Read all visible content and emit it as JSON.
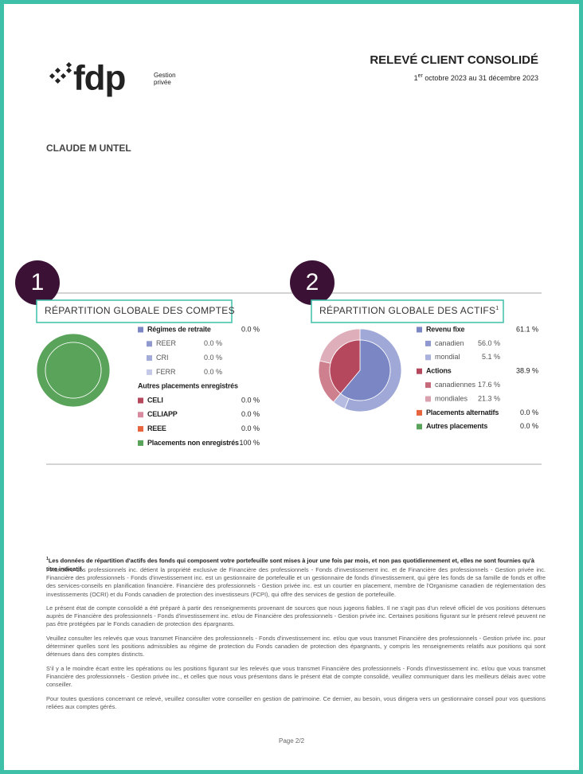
{
  "header": {
    "brand": "fdp",
    "brand_sub_1": "Gestion",
    "brand_sub_2": "privée",
    "title": "RELEVÉ CLIENT CONSOLIDÉ",
    "date_day": "1",
    "date_sup": "er",
    "date_rest": " octobre 2023 au 31 décembre 2023"
  },
  "client": "CLAUDE M UNTEL",
  "panels": [
    {
      "callout": "1",
      "title": "RÉPARTITION GLOBALE DES COMPTES",
      "items": [
        {
          "label": "Régimes de retraite",
          "value": 0,
          "value_label": "0.0 %",
          "color": "#7b86c4",
          "level": 0,
          "ring": "inner"
        },
        {
          "label": "REER",
          "value": 0,
          "value_label": "0.0 %",
          "color": "#8f99cf",
          "level": 1,
          "ring": "outer"
        },
        {
          "label": "CRI",
          "value": 0,
          "value_label": "0.0 %",
          "color": "#a3acd9",
          "level": 1,
          "ring": "outer"
        },
        {
          "label": "FERR",
          "value": 0,
          "value_label": "0.0 %",
          "color": "#c5c9e8",
          "level": 1,
          "ring": "outer"
        },
        {
          "label": "Autres placements enregistrés",
          "level": 0
        },
        {
          "label": "CELI",
          "value": 0,
          "value_label": "0.0 %",
          "color": "#b5485d",
          "level": 0,
          "ring": "both"
        },
        {
          "label": "CELIAPP",
          "value": 0,
          "value_label": "0.0 %",
          "color": "#d88aa0",
          "level": 0,
          "ring": "both"
        },
        {
          "label": "REEE",
          "value": 0,
          "value_label": "0.0 %",
          "color": "#e8643c",
          "level": 0,
          "ring": "both"
        },
        {
          "label": "Placements non enregistrés",
          "value": 100,
          "value_label": "100 %",
          "color": "#5aa35a",
          "level": 0,
          "ring": "both"
        }
      ]
    },
    {
      "callout": "2",
      "title": "RÉPARTITION GLOBALE DES ACTIFS",
      "title_mark": "1",
      "items": [
        {
          "label": "Revenu fixe",
          "value": 61.1,
          "value_label": "61.1 %",
          "color": "#7b86c4",
          "level": 0,
          "ring": "inner"
        },
        {
          "label": "canadien",
          "value": 56.0,
          "value_label": "56.0 %",
          "color": "#8f99cf",
          "level": 1,
          "ring": "outer"
        },
        {
          "label": "mondial",
          "value": 5.1,
          "value_label": "5.1 %",
          "color": "#aab1dc",
          "level": 1,
          "ring": "outer"
        },
        {
          "label": "Actions",
          "value": 38.9,
          "value_label": "38.9 %",
          "color": "#b5485d",
          "level": 0,
          "ring": "inner"
        },
        {
          "label": "canadiennes",
          "value": 17.6,
          "value_label": "17.6 %",
          "color": "#c66a7b",
          "level": 1,
          "ring": "outer"
        },
        {
          "label": "mondiales",
          "value": 21.3,
          "value_label": "21.3 %",
          "color": "#d9a0ae",
          "level": 1,
          "ring": "outer"
        },
        {
          "label": "Placements alternatifs",
          "value": 0,
          "value_label": "0.0 %",
          "color": "#e8643c",
          "level": 0,
          "ring": "both"
        },
        {
          "label": "Autres placements",
          "value": 0,
          "value_label": "0.0 %",
          "color": "#5aa35a",
          "level": 0,
          "ring": "both"
        }
      ]
    }
  ],
  "footnote": {
    "mark": "1",
    "text": "Les données de répartition d'actifs des fonds qui composent votre portefeuille sont mises à jour une fois par mois, et non pas quotidiennement et, elles ne sont fournies qu'à titre indicatif."
  },
  "paragraphs": [
    "Financière des professionnels inc. détient la propriété exclusive de Financière des professionnels - Fonds d'investissement inc. et de Financière des professionnels - Gestion privée inc. Financière des professionnels - Fonds d'investissement inc. est un gestionnaire de portefeuille et un gestionnaire de fonds d'investissement, qui gère les fonds de sa famille de fonds et offre des services-conseils en planification financière. Financière des professionnels - Gestion privée inc. est un courtier en placement, membre de l'Organisme canadien de réglementation des investissements (OCRI) et du Fonds canadien de protection des investisseurs (FCPI), qui offre des services de gestion de portefeuille.",
    "Le présent état de compte consolidé a été préparé à partir des renseignements provenant de sources que nous jugeons fiables. Il ne s'agit pas d'un relevé officiel de vos positions détenues auprès de Financière des professionnels - Fonds d'investissement inc. et/ou de Financière des professionnels - Gestion privée inc. Certaines positions figurant sur le présent relevé peuvent ne pas être protégées par le Fonds canadien de protection des épargnants.",
    "Veuillez consulter les relevés que vous transmet Financière des professionnels - Fonds d'investissement inc. et/ou que vous transmet Financière des professionnels - Gestion privée inc. pour déterminer quelles sont les positions admissibles au régime de protection du Fonds canadien de protection des épargnants, y compris les renseignements relatifs aux positions qui sont détenues dans des comptes distincts.",
    "S'il y a le moindre écart entre les opérations ou les positions figurant sur les relevés que vous transmet Financière des professionnels - Fonds d'investissement inc. et/ou que vous transmet Financière des professionnels - Gestion privée inc., et celles que nous vous présentons dans le présent état de compte consolidé, veuillez communiquer dans les meilleurs délais avec votre conseiller.",
    "Pour toutes questions concernant ce relevé, veuillez consulter votre conseiller en gestion de patrimoine. Ce dernier, au besoin, vous dirigera vers un gestionnaire conseil pour vos questions reliées aux comptes gérés."
  ],
  "page": "Page 2/2"
}
